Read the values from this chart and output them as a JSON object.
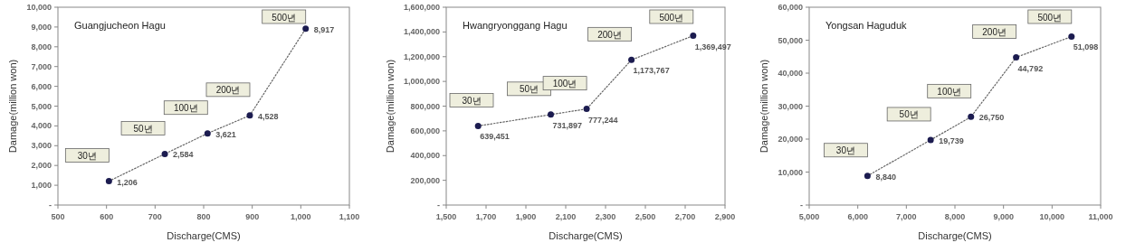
{
  "chart_data": [
    {
      "type": "line",
      "title": "Guangjucheon Hagu",
      "xlabel": "Discharge(CMS)",
      "ylabel": "Damage(million won)",
      "x": [
        605,
        720,
        808,
        895,
        1010
      ],
      "series": [
        {
          "color": "#1c1c50",
          "values": [
            1206,
            2584,
            3621,
            4528,
            8917
          ],
          "value_labels": [
            "1,206",
            "2,584",
            "3,621",
            "4,528",
            "8,917"
          ]
        }
      ],
      "xlim": [
        500,
        1100
      ],
      "xticks": [
        {
          "value": 500,
          "label": "500"
        },
        {
          "value": 600,
          "label": "600"
        },
        {
          "value": 700,
          "label": "700"
        },
        {
          "value": 800,
          "label": "800"
        },
        {
          "value": 900,
          "label": "900"
        },
        {
          "value": 1000,
          "label": "1,000"
        },
        {
          "value": 1100,
          "label": "1,100"
        }
      ],
      "ylim": [
        0,
        10000
      ],
      "yticks": [
        {
          "value": 0,
          "label": "-"
        },
        {
          "value": 1000,
          "label": "1,000"
        },
        {
          "value": 2000,
          "label": "2,000"
        },
        {
          "value": 3000,
          "label": "3,000"
        },
        {
          "value": 4000,
          "label": "4,000"
        },
        {
          "value": 5000,
          "label": "5,000"
        },
        {
          "value": 6000,
          "label": "6,000"
        },
        {
          "value": 7000,
          "label": "7,000"
        },
        {
          "value": 8000,
          "label": "8,000"
        },
        {
          "value": 9000,
          "label": "9,000"
        },
        {
          "value": 10000,
          "label": "10,000"
        }
      ],
      "marker": "circle",
      "line_style": "dotted",
      "grid": false,
      "annotations": [
        "30년",
        "50년",
        "100년",
        "200년",
        "500년"
      ]
    },
    {
      "type": "line",
      "title": "Hwangryonggang Hagu",
      "xlabel": "Discharge(CMS)",
      "ylabel": "Damage(million won)",
      "x": [
        1660,
        2025,
        2205,
        2430,
        2740
      ],
      "series": [
        {
          "color": "#1c1c50",
          "values": [
            639451,
            731897,
            777244,
            1173767,
            1369497
          ],
          "value_labels": [
            "639,451",
            "731,897",
            "777,244",
            "1,173,767",
            "1,369,497"
          ]
        }
      ],
      "xlim": [
        1500,
        2900
      ],
      "xticks": [
        {
          "value": 1500,
          "label": "1,500"
        },
        {
          "value": 1700,
          "label": "1,700"
        },
        {
          "value": 1900,
          "label": "1,900"
        },
        {
          "value": 2100,
          "label": "2,100"
        },
        {
          "value": 2300,
          "label": "2,300"
        },
        {
          "value": 2500,
          "label": "2,500"
        },
        {
          "value": 2700,
          "label": "2,700"
        },
        {
          "value": 2900,
          "label": "2,900"
        }
      ],
      "ylim": [
        0,
        1600000
      ],
      "yticks": [
        {
          "value": 0,
          "label": "-"
        },
        {
          "value": 200000,
          "label": "200,000"
        },
        {
          "value": 400000,
          "label": "400,000"
        },
        {
          "value": 600000,
          "label": "600,000"
        },
        {
          "value": 800000,
          "label": "800,000"
        },
        {
          "value": 1000000,
          "label": "1,000,000"
        },
        {
          "value": 1200000,
          "label": "1,200,000"
        },
        {
          "value": 1400000,
          "label": "1,400,000"
        },
        {
          "value": 1600000,
          "label": "1,600,000"
        }
      ],
      "marker": "circle",
      "line_style": "dotted",
      "grid": false,
      "annotations": [
        "30년",
        "50년",
        "100년",
        "200년",
        "500년"
      ]
    },
    {
      "type": "line",
      "title": "Yongsan Haguduk",
      "xlabel": "Discharge(CMS)",
      "ylabel": "Damage(million won)",
      "x": [
        6200,
        7500,
        8330,
        9260,
        10400
      ],
      "series": [
        {
          "color": "#1c1c50",
          "values": [
            8840,
            19739,
            26750,
            44792,
            51098
          ],
          "value_labels": [
            "8,840",
            "19,739",
            "26,750",
            "44,792",
            "51,098"
          ]
        }
      ],
      "xlim": [
        5000,
        11000
      ],
      "xticks": [
        {
          "value": 5000,
          "label": "5,000"
        },
        {
          "value": 6000,
          "label": "6,000"
        },
        {
          "value": 7000,
          "label": "7,000"
        },
        {
          "value": 8000,
          "label": "8,000"
        },
        {
          "value": 9000,
          "label": "9,000"
        },
        {
          "value": 10000,
          "label": "10,000"
        },
        {
          "value": 11000,
          "label": "11,000"
        }
      ],
      "ylim": [
        0,
        60000
      ],
      "yticks": [
        {
          "value": 0,
          "label": "-"
        },
        {
          "value": 10000,
          "label": "10,000"
        },
        {
          "value": 20000,
          "label": "20,000"
        },
        {
          "value": 30000,
          "label": "30,000"
        },
        {
          "value": 40000,
          "label": "40,000"
        },
        {
          "value": 50000,
          "label": "50,000"
        },
        {
          "value": 60000,
          "label": "60,000"
        }
      ],
      "marker": "circle",
      "line_style": "dotted",
      "grid": false,
      "annotations": [
        "30년",
        "50년",
        "100년",
        "200년",
        "500년"
      ]
    }
  ]
}
